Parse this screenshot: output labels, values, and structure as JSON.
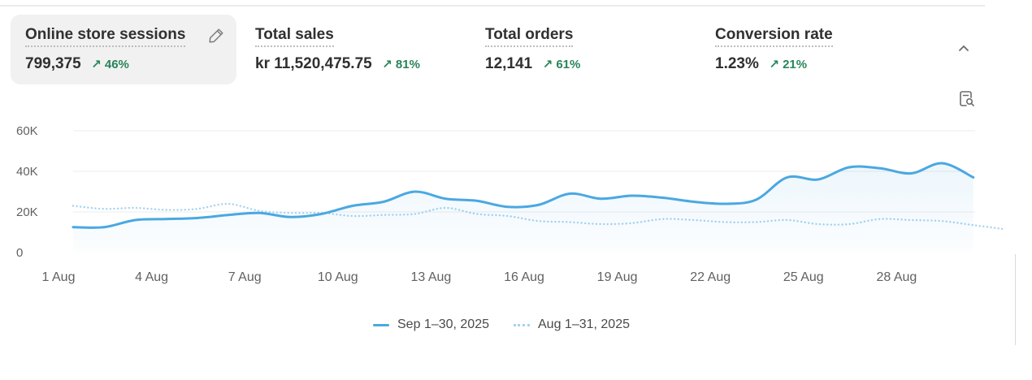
{
  "metrics": [
    {
      "title": "Online store sessions",
      "value": "799,375",
      "change": "↗ 46%",
      "active": true
    },
    {
      "title": "Total sales",
      "value": "kr 11,520,475.75",
      "change": "↗ 81%"
    },
    {
      "title": "Total orders",
      "value": "12,141",
      "change": "↗ 61%"
    },
    {
      "title": "Conversion rate",
      "value": "1.23%",
      "change": "↗ 21%"
    }
  ],
  "icons": {
    "edit": "pencil-icon",
    "collapse": "chevron-up-icon",
    "explain": "magnify-document-icon"
  },
  "chart_data": {
    "type": "line",
    "xlabel": "",
    "ylabel": "",
    "ylim": [
      0,
      60000
    ],
    "y_ticks": [
      {
        "value": 0,
        "label": "0"
      },
      {
        "value": 20000,
        "label": "20K"
      },
      {
        "value": 40000,
        "label": "40K"
      },
      {
        "value": 60000,
        "label": "60K"
      }
    ],
    "x_tick_labels": [
      "1 Aug",
      "4 Aug",
      "7 Aug",
      "10 Aug",
      "13 Aug",
      "16 Aug",
      "19 Aug",
      "22 Aug",
      "25 Aug",
      "28 Aug"
    ],
    "x_tick_days": [
      1,
      4,
      7,
      10,
      13,
      16,
      19,
      22,
      25,
      28
    ],
    "grid": true,
    "legend_position": "bottom-center",
    "series": [
      {
        "name": "Sep 1–30, 2025",
        "style": "solid",
        "color": "#4aa8e1",
        "area_fill": true,
        "x": [
          1,
          2,
          3,
          4,
          5,
          6,
          7,
          8,
          9,
          10,
          11,
          12,
          13,
          14,
          15,
          16,
          17,
          18,
          19,
          20,
          21,
          22,
          23,
          24,
          25,
          26,
          27,
          28,
          29,
          30
        ],
        "values": [
          12500,
          12500,
          16000,
          16500,
          17000,
          18500,
          19500,
          17500,
          19000,
          23000,
          25000,
          30000,
          26500,
          25500,
          22500,
          23500,
          29000,
          26500,
          28000,
          27000,
          25000,
          24000,
          26000,
          37000,
          36000,
          42000,
          41500,
          39000,
          44000,
          37000
        ]
      },
      {
        "name": "Aug 1–31, 2025",
        "style": "dotted",
        "color": "#a6d3f0",
        "area_fill": false,
        "x": [
          1,
          2,
          3,
          4,
          5,
          6,
          7,
          8,
          9,
          10,
          11,
          12,
          13,
          14,
          15,
          16,
          17,
          18,
          19,
          20,
          21,
          22,
          23,
          24,
          25,
          26,
          27,
          28,
          29,
          30,
          31
        ],
        "values": [
          23000,
          21500,
          22000,
          21000,
          21500,
          24000,
          20500,
          19500,
          19500,
          18000,
          18500,
          19000,
          22000,
          19000,
          18000,
          15500,
          15000,
          14000,
          14500,
          16500,
          16000,
          15000,
          15000,
          16000,
          14000,
          14000,
          16500,
          16000,
          15500,
          13500,
          11500
        ]
      }
    ]
  }
}
